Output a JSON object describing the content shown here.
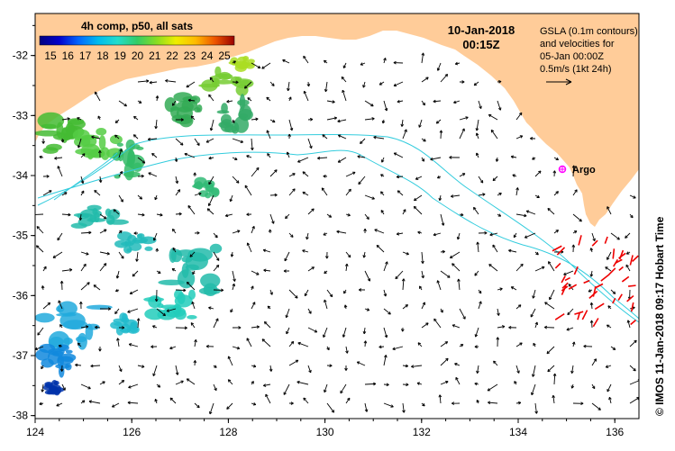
{
  "map": {
    "colorbar_title": "4h comp, p50, all sats",
    "colorbar_ticks": [
      "15",
      "16",
      "17",
      "18",
      "19",
      "20",
      "21",
      "22",
      "23",
      "24",
      "25"
    ],
    "date_line1": "10-Jan-2018",
    "date_line2": "00:15Z",
    "legend_lines": [
      "GSLA (0.1m contours)",
      "and velocities for",
      "05-Jan 00:00Z",
      "0.5m/s (1kt 24h)"
    ],
    "argo_label": "Argo",
    "credit": "© IMOS 11-Jan-2018 09:17 Hobart Time",
    "x_ticks": [
      "124",
      "126",
      "128",
      "130",
      "132",
      "134",
      "136"
    ],
    "y_ticks": [
      "-32",
      "-33",
      "-34",
      "-35",
      "-36",
      "-37",
      "-38"
    ],
    "colors": {
      "land": "#ffcc99",
      "contour": "#33ccdd",
      "current_vectors": "#000000",
      "argo_vectors": "#ee0000",
      "argo_marker": "#ff00ff"
    }
  }
}
